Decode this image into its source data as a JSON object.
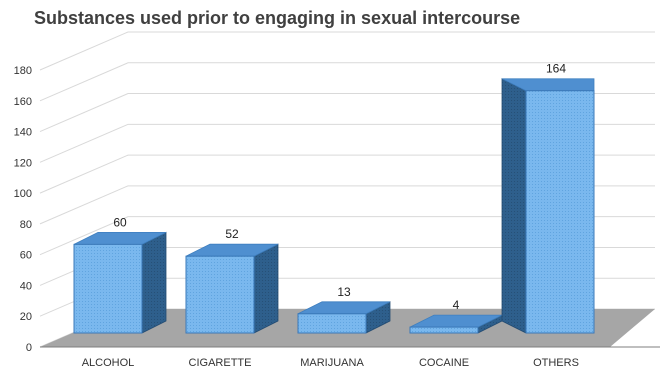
{
  "chart_data": {
    "type": "bar",
    "title": "Substances used prior to engaging in sexual intercourse",
    "categories": [
      "ALCOHOL",
      "CIGARETTE",
      "MARIJUANA",
      "COCAINE",
      "OTHERS"
    ],
    "values": [
      60,
      52,
      13,
      4,
      164
    ],
    "yticks": [
      0,
      20,
      40,
      60,
      80,
      100,
      120,
      140,
      160,
      180
    ],
    "ylim": [
      0,
      180
    ],
    "xlabel": "",
    "ylabel": "",
    "grid": true,
    "legend": "none",
    "style": "3d-column",
    "colors": {
      "front": "#7ab8ee",
      "side": "#2e5f8c",
      "top": "#4f8fd0",
      "floor": "#a6a6a6"
    }
  }
}
